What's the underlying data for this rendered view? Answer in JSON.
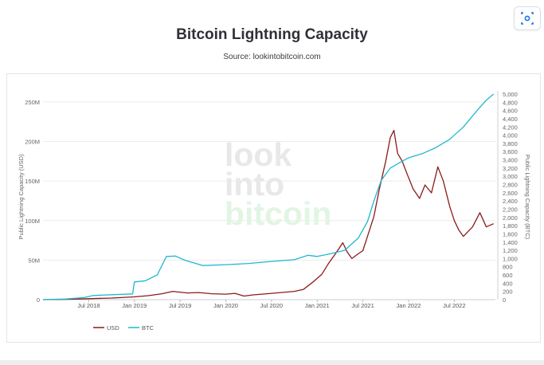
{
  "header": {
    "title": "Bitcoin Lightning Capacity",
    "subtitle": "Source: lookintobitcoin.com"
  },
  "watermark": [
    "look",
    "into",
    "bitcoin"
  ],
  "chart_data": {
    "type": "line",
    "title": "Bitcoin Lightning Capacity",
    "subtitle": "Source: lookintobitcoin.com",
    "xlabel": "",
    "ylabel_left": "Public Lightning Capacity (USD)",
    "ylabel_right": "Public Lightning Capacity (BTC)",
    "x_range": [
      2018.0,
      2022.95
    ],
    "x_ticks": [
      {
        "x": 2018.5,
        "label": "Jul 2018"
      },
      {
        "x": 2019.0,
        "label": "Jan 2019"
      },
      {
        "x": 2019.5,
        "label": "Jul 2019"
      },
      {
        "x": 2020.0,
        "label": "Jan 2020"
      },
      {
        "x": 2020.5,
        "label": "Jul 2020"
      },
      {
        "x": 2021.0,
        "label": "Jan 2021"
      },
      {
        "x": 2021.5,
        "label": "Jul 2021"
      },
      {
        "x": 2022.0,
        "label": "Jan 2022"
      },
      {
        "x": 2022.5,
        "label": "Jul 2022"
      }
    ],
    "y_left_range": [
      0,
      260000000
    ],
    "y_left_ticks": [
      {
        "v": 0,
        "label": "0"
      },
      {
        "v": 50000000,
        "label": "50M"
      },
      {
        "v": 100000000,
        "label": "100M"
      },
      {
        "v": 150000000,
        "label": "150M"
      },
      {
        "v": 200000000,
        "label": "200M"
      },
      {
        "v": 250000000,
        "label": "250M"
      }
    ],
    "y_right_range": [
      0,
      5000
    ],
    "y_right_ticks": [
      {
        "v": 0,
        "label": "0"
      },
      {
        "v": 200,
        "label": "200"
      },
      {
        "v": 400,
        "label": "400"
      },
      {
        "v": 600,
        "label": "600"
      },
      {
        "v": 800,
        "label": "800"
      },
      {
        "v": 1000,
        "label": "1,000"
      },
      {
        "v": 1200,
        "label": "1,200"
      },
      {
        "v": 1400,
        "label": "1,400"
      },
      {
        "v": 1600,
        "label": "1,600"
      },
      {
        "v": 1800,
        "label": "1,800"
      },
      {
        "v": 2000,
        "label": "2,000"
      },
      {
        "v": 2200,
        "label": "2,200"
      },
      {
        "v": 2400,
        "label": "2,400"
      },
      {
        "v": 2600,
        "label": "2,600"
      },
      {
        "v": 2800,
        "label": "2,800"
      },
      {
        "v": 3000,
        "label": "3,000"
      },
      {
        "v": 3200,
        "label": "3,200"
      },
      {
        "v": 3400,
        "label": "3,400"
      },
      {
        "v": 3600,
        "label": "3,600"
      },
      {
        "v": 3800,
        "label": "3,800"
      },
      {
        "v": 4000,
        "label": "4,000"
      },
      {
        "v": 4200,
        "label": "4,200"
      },
      {
        "v": 4400,
        "label": "4,400"
      },
      {
        "v": 4600,
        "label": "4,600"
      },
      {
        "v": 4800,
        "label": "4,800"
      },
      {
        "v": 5000,
        "label": "5,000"
      }
    ],
    "grid": true,
    "legend_position": "bottom-left",
    "series": [
      {
        "name": "USD",
        "axis": "left",
        "color": "#8b1a1a",
        "points": [
          [
            2018.0,
            0
          ],
          [
            2018.25,
            400000
          ],
          [
            2018.5,
            1200000
          ],
          [
            2018.75,
            2000000
          ],
          [
            2019.0,
            3500000
          ],
          [
            2019.15,
            5000000
          ],
          [
            2019.3,
            7500000
          ],
          [
            2019.42,
            10500000
          ],
          [
            2019.5,
            9500000
          ],
          [
            2019.58,
            8500000
          ],
          [
            2019.7,
            9000000
          ],
          [
            2019.85,
            7500000
          ],
          [
            2020.0,
            7000000
          ],
          [
            2020.1,
            8000000
          ],
          [
            2020.2,
            4500000
          ],
          [
            2020.3,
            6000000
          ],
          [
            2020.45,
            7500000
          ],
          [
            2020.6,
            9000000
          ],
          [
            2020.75,
            10500000
          ],
          [
            2020.85,
            13000000
          ],
          [
            2020.95,
            22000000
          ],
          [
            2021.05,
            32000000
          ],
          [
            2021.12,
            45000000
          ],
          [
            2021.2,
            58000000
          ],
          [
            2021.28,
            72000000
          ],
          [
            2021.33,
            60000000
          ],
          [
            2021.38,
            52000000
          ],
          [
            2021.45,
            58000000
          ],
          [
            2021.5,
            62000000
          ],
          [
            2021.55,
            80000000
          ],
          [
            2021.62,
            105000000
          ],
          [
            2021.68,
            140000000
          ],
          [
            2021.75,
            175000000
          ],
          [
            2021.8,
            205000000
          ],
          [
            2021.84,
            214000000
          ],
          [
            2021.88,
            185000000
          ],
          [
            2021.93,
            175000000
          ],
          [
            2021.98,
            160000000
          ],
          [
            2022.05,
            140000000
          ],
          [
            2022.12,
            128000000
          ],
          [
            2022.18,
            145000000
          ],
          [
            2022.25,
            135000000
          ],
          [
            2022.32,
            168000000
          ],
          [
            2022.38,
            150000000
          ],
          [
            2022.45,
            118000000
          ],
          [
            2022.5,
            100000000
          ],
          [
            2022.55,
            88000000
          ],
          [
            2022.6,
            80000000
          ],
          [
            2022.7,
            92000000
          ],
          [
            2022.78,
            110000000
          ],
          [
            2022.85,
            92000000
          ],
          [
            2022.93,
            96000000
          ]
        ]
      },
      {
        "name": "BTC",
        "axis": "right",
        "color": "#1fb8d0",
        "points": [
          [
            2018.0,
            0
          ],
          [
            2018.25,
            15
          ],
          [
            2018.45,
            50
          ],
          [
            2018.55,
            100
          ],
          [
            2018.75,
            120
          ],
          [
            2018.98,
            140
          ],
          [
            2019.0,
            430
          ],
          [
            2019.12,
            460
          ],
          [
            2019.25,
            600
          ],
          [
            2019.35,
            1050
          ],
          [
            2019.45,
            1060
          ],
          [
            2019.55,
            960
          ],
          [
            2019.75,
            830
          ],
          [
            2020.0,
            850
          ],
          [
            2020.25,
            880
          ],
          [
            2020.5,
            930
          ],
          [
            2020.75,
            970
          ],
          [
            2020.9,
            1080
          ],
          [
            2021.0,
            1050
          ],
          [
            2021.15,
            1120
          ],
          [
            2021.3,
            1200
          ],
          [
            2021.45,
            1500
          ],
          [
            2021.55,
            1900
          ],
          [
            2021.62,
            2400
          ],
          [
            2021.7,
            2900
          ],
          [
            2021.8,
            3200
          ],
          [
            2021.9,
            3330
          ],
          [
            2022.0,
            3450
          ],
          [
            2022.15,
            3550
          ],
          [
            2022.3,
            3700
          ],
          [
            2022.45,
            3900
          ],
          [
            2022.6,
            4200
          ],
          [
            2022.75,
            4600
          ],
          [
            2022.85,
            4850
          ],
          [
            2022.93,
            5000
          ]
        ]
      }
    ]
  }
}
